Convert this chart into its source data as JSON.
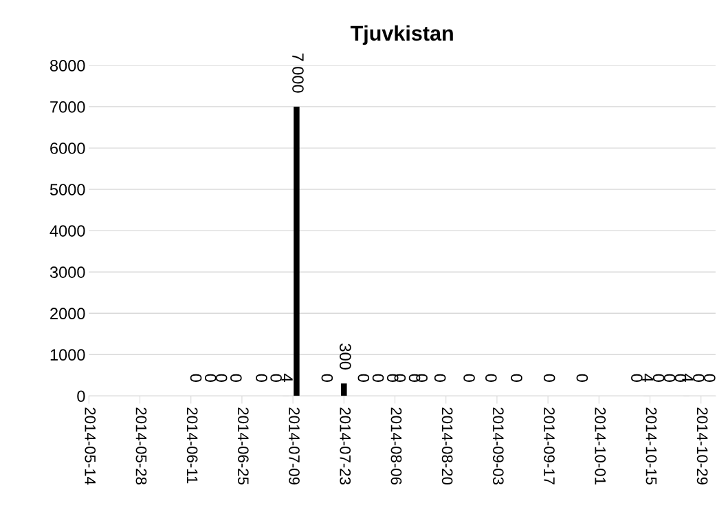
{
  "chart_data": {
    "type": "bar",
    "title": "Tjuvkistan",
    "x": [
      "2014-06-12",
      "2014-06-16",
      "2014-06-19",
      "2014-06-23",
      "2014-06-30",
      "2014-07-04",
      "2014-07-07",
      "2014-07-10",
      "2014-07-18",
      "2014-07-23",
      "2014-07-28",
      "2014-08-01",
      "2014-08-05",
      "2014-08-07",
      "2014-08-11",
      "2014-08-13",
      "2014-08-18",
      "2014-08-26",
      "2014-09-01",
      "2014-09-08",
      "2014-09-17",
      "2014-09-26",
      "2014-10-11",
      "2014-10-14",
      "2014-10-17",
      "2014-10-20",
      "2014-10-23",
      "2014-10-25",
      "2014-10-28",
      "2014-10-31"
    ],
    "values": [
      0,
      0,
      0,
      0,
      0,
      0,
      4,
      7000,
      0,
      300,
      0,
      0,
      0,
      0,
      0,
      0,
      0,
      0,
      0,
      0,
      0,
      0,
      0,
      4,
      0,
      0,
      0,
      4,
      0,
      0
    ],
    "value_labels": [
      "0",
      "0",
      "0",
      "0",
      "0",
      "0",
      "4",
      "7 000",
      "0",
      "300",
      "0",
      "0",
      "0",
      "0",
      "0",
      "0",
      "0",
      "0",
      "0",
      "0",
      "0",
      "0",
      "0",
      "4",
      "0",
      "0",
      "0",
      "4",
      "0",
      "0"
    ],
    "color": "#000000",
    "xlim": [
      "2014-05-14",
      "2014-11-02"
    ],
    "xticks": [
      "2014-05-14",
      "2014-05-28",
      "2014-06-11",
      "2014-06-25",
      "2014-07-09",
      "2014-07-23",
      "2014-08-06",
      "2014-08-20",
      "2014-09-03",
      "2014-09-17",
      "2014-10-01",
      "2014-10-15",
      "2014-10-29"
    ],
    "ylim": [
      0,
      8000
    ],
    "yticks": [
      0,
      1000,
      2000,
      3000,
      4000,
      5000,
      6000,
      7000,
      8000
    ],
    "grid": "y",
    "legend": false
  }
}
